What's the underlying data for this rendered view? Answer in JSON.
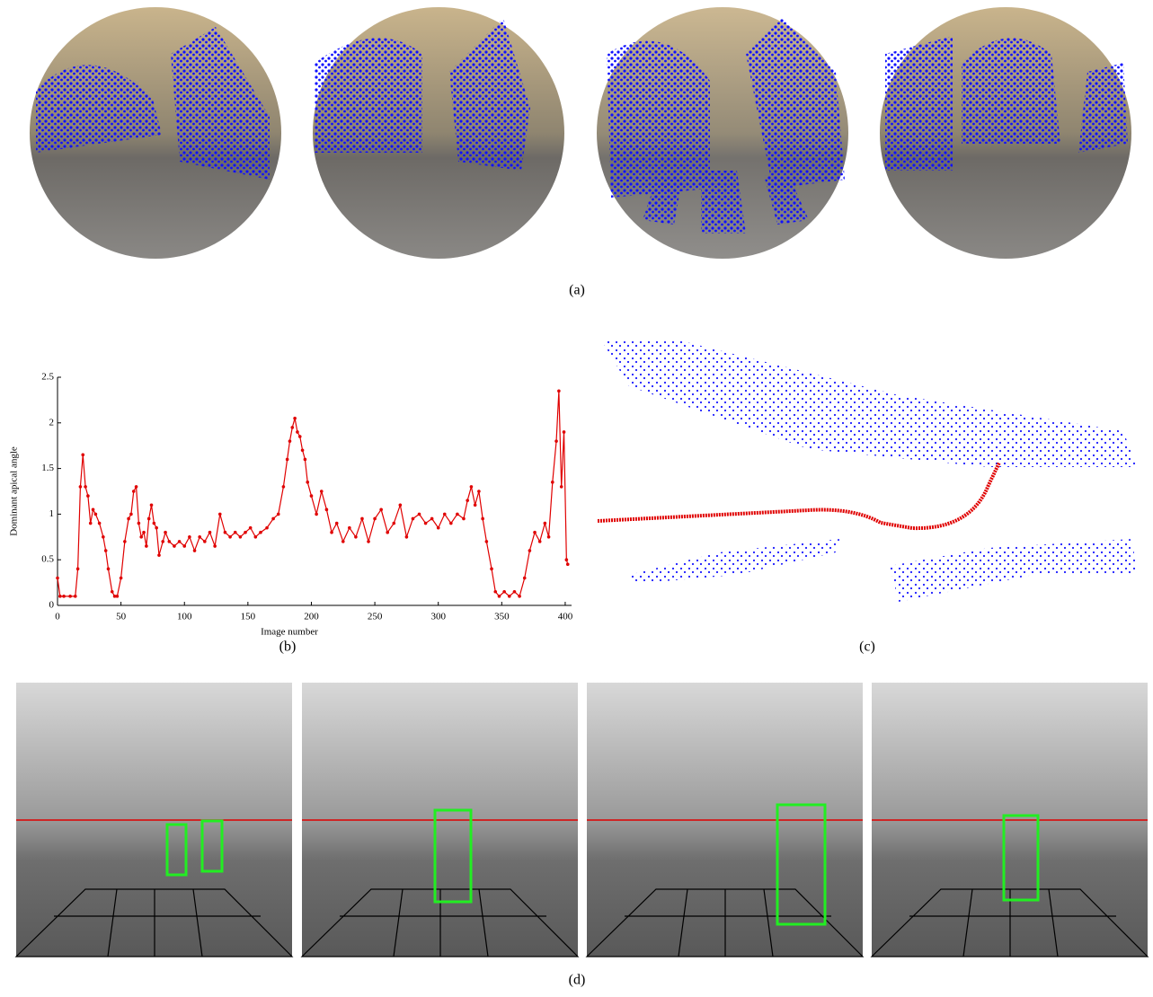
{
  "captions": {
    "a": "(a)",
    "b": "(b)",
    "c": "(c)",
    "d": "(d)"
  },
  "chart_data": {
    "type": "line",
    "xlabel": "Image number",
    "ylabel": "Dominant apical angle",
    "color": "#e00000",
    "xlim": [
      0,
      405
    ],
    "xticks": [
      0,
      50,
      100,
      150,
      200,
      250,
      300,
      350,
      400
    ],
    "ylim": [
      0,
      2.5
    ],
    "yticks": [
      0,
      0.5,
      1,
      1.5,
      2,
      2.5
    ],
    "x": [
      0,
      2,
      5,
      10,
      14,
      16,
      18,
      20,
      22,
      24,
      26,
      28,
      30,
      33,
      36,
      38,
      40,
      43,
      45,
      47,
      50,
      53,
      56,
      58,
      60,
      62,
      64,
      66,
      68,
      70,
      72,
      74,
      76,
      78,
      80,
      83,
      85,
      88,
      92,
      96,
      100,
      104,
      108,
      112,
      116,
      120,
      124,
      128,
      132,
      136,
      140,
      144,
      148,
      152,
      156,
      160,
      165,
      170,
      174,
      178,
      181,
      183,
      185,
      187,
      189,
      191,
      193,
      195,
      197,
      200,
      204,
      208,
      212,
      216,
      220,
      225,
      230,
      235,
      240,
      245,
      250,
      255,
      260,
      265,
      270,
      275,
      280,
      285,
      290,
      295,
      300,
      305,
      310,
      315,
      320,
      323,
      326,
      329,
      332,
      335,
      338,
      342,
      345,
      348,
      352,
      356,
      360,
      364,
      368,
      372,
      376,
      380,
      384,
      387,
      390,
      393,
      395,
      397,
      399,
      401,
      402
    ],
    "values": [
      0.3,
      0.1,
      0.1,
      0.1,
      0.1,
      0.4,
      1.3,
      1.65,
      1.3,
      1.2,
      0.9,
      1.05,
      1.0,
      0.9,
      0.75,
      0.6,
      0.4,
      0.15,
      0.1,
      0.1,
      0.3,
      0.7,
      0.95,
      1.0,
      1.25,
      1.3,
      0.9,
      0.75,
      0.8,
      0.65,
      0.95,
      1.1,
      0.9,
      0.85,
      0.55,
      0.7,
      0.8,
      0.7,
      0.65,
      0.7,
      0.65,
      0.75,
      0.6,
      0.75,
      0.7,
      0.8,
      0.65,
      1.0,
      0.8,
      0.75,
      0.8,
      0.75,
      0.8,
      0.85,
      0.75,
      0.8,
      0.85,
      0.95,
      1.0,
      1.3,
      1.6,
      1.8,
      1.95,
      2.05,
      1.9,
      1.85,
      1.7,
      1.6,
      1.35,
      1.2,
      1.0,
      1.25,
      1.05,
      0.8,
      0.9,
      0.7,
      0.85,
      0.75,
      0.95,
      0.7,
      0.95,
      1.05,
      0.8,
      0.9,
      1.1,
      0.75,
      0.95,
      1.0,
      0.9,
      0.95,
      0.85,
      1.0,
      0.9,
      1.0,
      0.95,
      1.15,
      1.3,
      1.1,
      1.25,
      0.95,
      0.7,
      0.4,
      0.15,
      0.1,
      0.15,
      0.1,
      0.15,
      0.1,
      0.3,
      0.6,
      0.8,
      0.7,
      0.9,
      0.75,
      1.35,
      1.8,
      2.35,
      1.3,
      1.9,
      0.5,
      0.45
    ]
  }
}
